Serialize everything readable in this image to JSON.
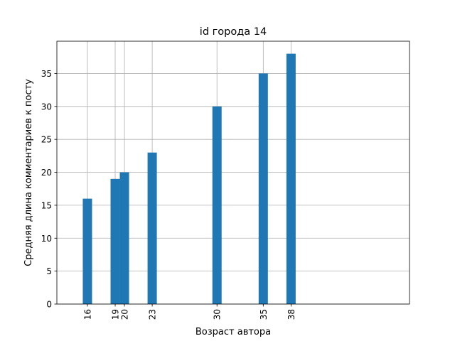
{
  "chart_data": {
    "type": "bar",
    "title": "id города 14",
    "xlabel": "Возраст автора",
    "ylabel": "Средняя длина комментариев к посту",
    "x": [
      16,
      19,
      20,
      23,
      30,
      35,
      38
    ],
    "x_tick_labels": [
      "38",
      "20",
      "16",
      "35",
      "30",
      "19",
      "23"
    ],
    "values": [
      16,
      19,
      20,
      23,
      30,
      35,
      38
    ],
    "x_axis_note": "tick labels are printed rotated 90 degrees; bars placed by numeric position on x axis",
    "xlim": [
      12.7,
      50.8
    ],
    "ylim": [
      0,
      39.9
    ],
    "y_ticks": [
      0,
      5,
      10,
      15,
      20,
      25,
      30,
      35
    ],
    "bar_color": "#1f77b4",
    "grid": true,
    "legend": "none"
  }
}
